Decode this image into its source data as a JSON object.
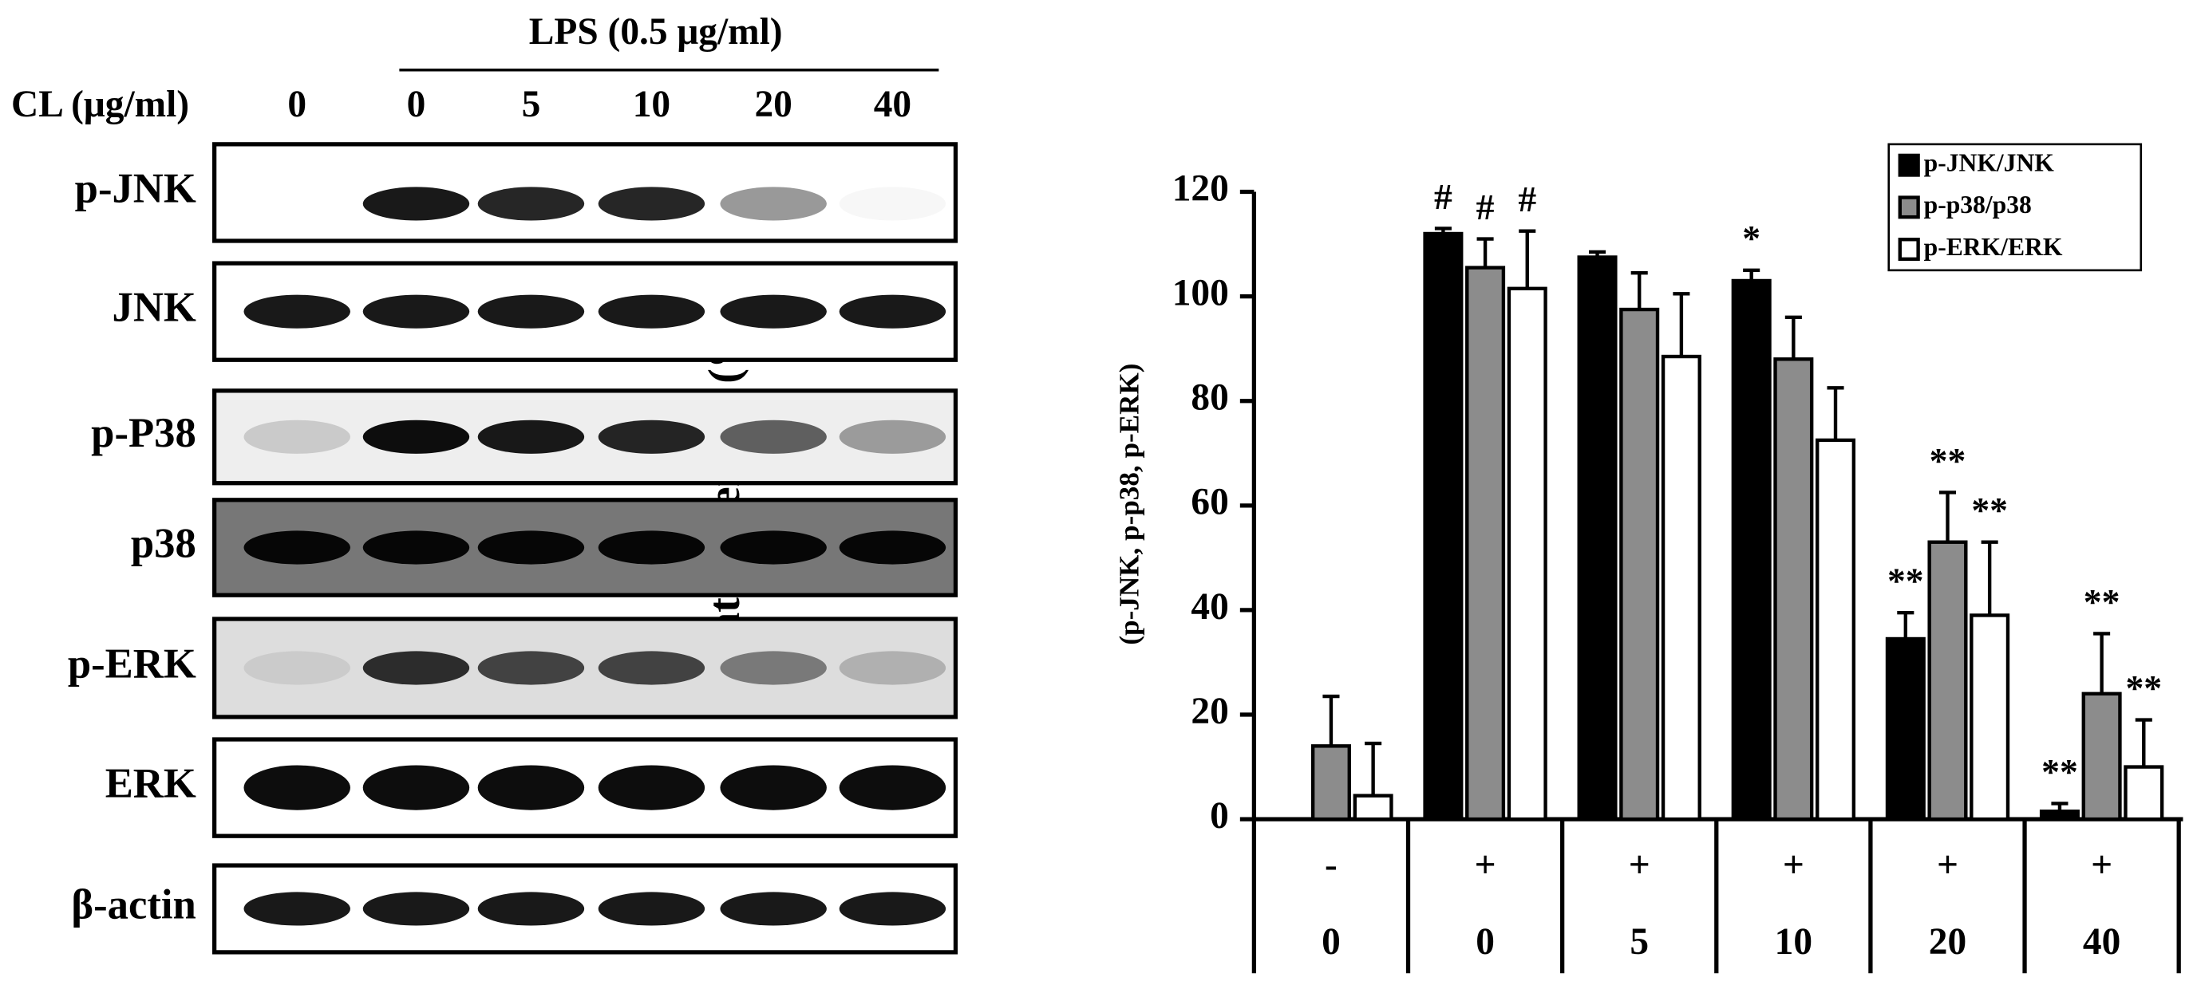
{
  "blot": {
    "lps_label": "LPS (0.5 μg/ml)",
    "cl_label": "CL (μg/ml)",
    "cl_values": [
      "0",
      "0",
      "5",
      "10",
      "20",
      "40"
    ],
    "rows": [
      "p-JNK",
      "JNK",
      "p-P38",
      "p38",
      "p-ERK",
      "ERK",
      "β-actin"
    ]
  },
  "chart_data": {
    "type": "bar",
    "y_label": "Relative density (%)",
    "y_sublabel": "(p-JNK, p-p38, p-ERK)",
    "lps": [
      "-",
      "+",
      "+",
      "+",
      "+",
      "+"
    ],
    "categories": [
      "0",
      "0",
      "5",
      "10",
      "20",
      "40"
    ],
    "series": [
      {
        "name": "p-JNK/JNK",
        "color": "#000000",
        "values": [
          null,
          112,
          107.5,
          103,
          34.5,
          1.5
        ],
        "errors": [
          null,
          1,
          1,
          2,
          5,
          1.5
        ],
        "marks": [
          null,
          "#",
          null,
          "*",
          "**",
          "**"
        ]
      },
      {
        "name": "p-p38/p38",
        "color": "#8c8c8c",
        "values": [
          14,
          105.5,
          97.5,
          88,
          53,
          24
        ],
        "errors": [
          9.5,
          5.5,
          7,
          8,
          9.5,
          11.5
        ],
        "marks": [
          null,
          "#",
          null,
          null,
          "**",
          "**"
        ]
      },
      {
        "name": "p-ERK/ERK",
        "color": "#ffffff",
        "values": [
          4.5,
          101.5,
          88.5,
          72.5,
          39,
          10
        ],
        "errors": [
          10,
          11,
          12,
          10,
          14,
          9
        ],
        "marks": [
          null,
          "#",
          null,
          null,
          "**",
          "**"
        ]
      }
    ],
    "ylim": [
      0,
      120
    ],
    "yticks": [
      0,
      20,
      40,
      60,
      80,
      100,
      120
    ],
    "legend": "upper right"
  }
}
